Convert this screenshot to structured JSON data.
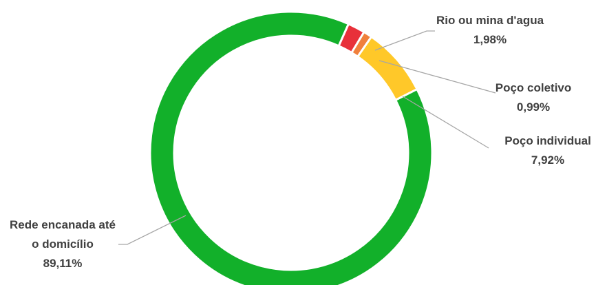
{
  "chart_data": {
    "type": "donut",
    "categories": [
      "Rio ou mina d'agua",
      "Poço coletivo",
      "Poço individual",
      "Rede encanada até o domicílio"
    ],
    "values": [
      1.98,
      0.99,
      7.92,
      89.11
    ],
    "value_labels": [
      "1,98%",
      "0,99%",
      "7,92%",
      "89,11%"
    ],
    "colors": [
      "#e8303a",
      "#f0803c",
      "#ffc829",
      "#12b02a"
    ]
  }
}
